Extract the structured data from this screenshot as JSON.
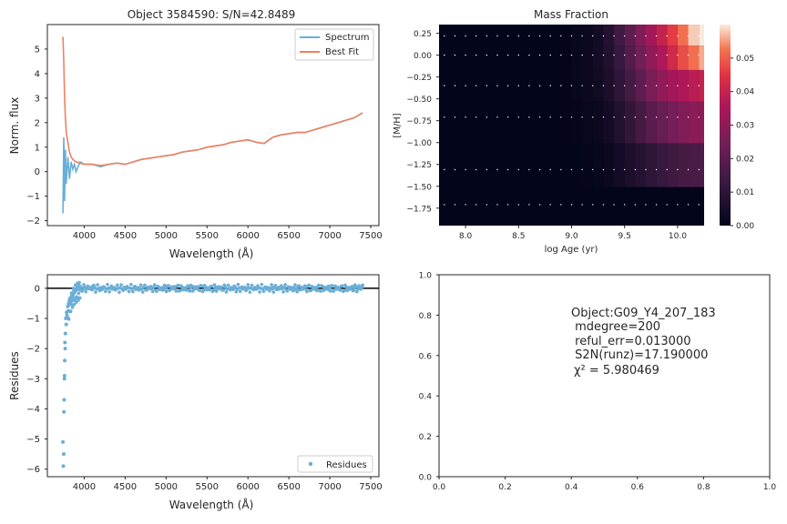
{
  "chart_data": [
    {
      "type": "line",
      "title": "Object 3584590: S/N=42.8489",
      "xlabel": "Wavelength (Å)",
      "ylabel": "Norm. flux",
      "xlim": [
        3550,
        7600
      ],
      "ylim": [
        -2.2,
        6.0
      ],
      "xticks": [
        "4000",
        "4500",
        "5000",
        "5500",
        "6000",
        "6500",
        "7000",
        "7500"
      ],
      "yticks": [
        "−2",
        "−1",
        "0",
        "1",
        "2",
        "3",
        "4",
        "5"
      ],
      "legend": "top-right",
      "series": [
        {
          "name": "Spectrum",
          "color": "#6aaed6",
          "x": [
            3740,
            3750,
            3760,
            3770,
            3780,
            3800,
            3820,
            3840,
            3860,
            3880,
            3900,
            3950,
            4000,
            4100,
            4200,
            4300,
            4400,
            4500,
            4600,
            4700,
            4800,
            4900,
            5000,
            5100,
            5200,
            5300,
            5400,
            5500,
            5600,
            5700,
            5800,
            5900,
            6000,
            6100,
            6200,
            6300,
            6400,
            6500,
            6600,
            6700,
            6800,
            6900,
            7000,
            7100,
            7200,
            7300,
            7400
          ],
          "y": [
            -1.7,
            1.4,
            -1.2,
            0.9,
            -0.5,
            0.6,
            -0.3,
            0.4,
            0.1,
            0.3,
            0.0,
            0.4,
            0.3,
            0.3,
            0.2,
            0.3,
            0.35,
            0.3,
            0.4,
            0.5,
            0.55,
            0.6,
            0.65,
            0.7,
            0.8,
            0.85,
            0.9,
            1.0,
            1.05,
            1.1,
            1.2,
            1.25,
            1.3,
            1.2,
            1.15,
            1.4,
            1.5,
            1.55,
            1.6,
            1.6,
            1.7,
            1.8,
            1.9,
            2.0,
            2.1,
            2.2,
            2.4
          ]
        },
        {
          "name": "Best Fit",
          "color": "#f08060",
          "x": [
            3740,
            3750,
            3760,
            3770,
            3780,
            3800,
            3820,
            3840,
            3860,
            3880,
            3900,
            3950,
            4000,
            4100,
            4200,
            4300,
            4400,
            4500,
            4600,
            4700,
            4800,
            4900,
            5000,
            5100,
            5200,
            5300,
            5400,
            5500,
            5600,
            5700,
            5800,
            5900,
            6000,
            6100,
            6200,
            6300,
            6400,
            6500,
            6600,
            6700,
            6800,
            6900,
            7000,
            7100,
            7200,
            7300,
            7400
          ],
          "y": [
            5.5,
            4.5,
            3.0,
            2.2,
            1.6,
            1.2,
            0.8,
            0.6,
            0.5,
            0.45,
            0.4,
            0.35,
            0.3,
            0.3,
            0.25,
            0.3,
            0.35,
            0.3,
            0.4,
            0.5,
            0.55,
            0.6,
            0.65,
            0.7,
            0.8,
            0.85,
            0.9,
            1.0,
            1.05,
            1.1,
            1.2,
            1.25,
            1.3,
            1.2,
            1.15,
            1.4,
            1.5,
            1.55,
            1.6,
            1.6,
            1.7,
            1.8,
            1.9,
            2.0,
            2.1,
            2.2,
            2.4
          ]
        }
      ]
    },
    {
      "type": "heatmap",
      "title": "Mass Fraction",
      "xlabel": "log Age (yr)",
      "ylabel": "[M/H]",
      "xlim": [
        7.75,
        10.25
      ],
      "ylim": [
        -1.95,
        0.35
      ],
      "xticks": [
        "8.0",
        "8.5",
        "9.0",
        "9.5",
        "10.0"
      ],
      "yticks": [
        "0.25",
        "0.00",
        "−0.25",
        "−0.50",
        "−0.75",
        "−1.00",
        "−1.25",
        "−1.50",
        "−1.75"
      ],
      "colorbar": {
        "vmin": 0,
        "vmax": 0.06,
        "ticks": [
          "0.00",
          "0.01",
          "0.02",
          "0.03",
          "0.04",
          "0.05"
        ]
      },
      "age_columns": [
        9.05,
        9.15,
        9.25,
        9.35,
        9.45,
        9.55,
        9.65,
        9.75,
        9.85,
        9.95,
        10.05,
        10.15,
        10.25
      ],
      "metallicity_rows": [
        0.22,
        0.0,
        -0.35,
        -0.71,
        -1.31,
        -1.71
      ],
      "values": [
        [
          0.001,
          0.002,
          0.004,
          0.008,
          0.014,
          0.02,
          0.027,
          0.034,
          0.04,
          0.046,
          0.052,
          0.058,
          0.06
        ],
        [
          0.001,
          0.002,
          0.004,
          0.007,
          0.012,
          0.018,
          0.024,
          0.03,
          0.036,
          0.042,
          0.048,
          0.052,
          0.056
        ],
        [
          0.001,
          0.002,
          0.003,
          0.006,
          0.01,
          0.015,
          0.02,
          0.026,
          0.03,
          0.034,
          0.036,
          0.038,
          0.04
        ],
        [
          0.0005,
          0.001,
          0.002,
          0.004,
          0.007,
          0.011,
          0.015,
          0.019,
          0.022,
          0.025,
          0.027,
          0.029,
          0.03
        ],
        [
          0.0,
          0.0005,
          0.001,
          0.002,
          0.004,
          0.006,
          0.008,
          0.01,
          0.012,
          0.014,
          0.015,
          0.016,
          0.017
        ],
        [
          0.0,
          0.0,
          0.0,
          0.0,
          0.0,
          0.0,
          0.0,
          0.0,
          0.0,
          0.0,
          0.0,
          0.0,
          0.0
        ]
      ]
    },
    {
      "type": "scatter",
      "xlabel": "Wavelength (Å)",
      "ylabel": "Residues",
      "xlim": [
        3550,
        7600
      ],
      "ylim": [
        -6.25,
        0.45
      ],
      "xticks": [
        "4000",
        "4500",
        "5000",
        "5500",
        "6000",
        "6500",
        "7000",
        "7500"
      ],
      "yticks": [
        "−6",
        "−5",
        "−4",
        "−3",
        "−2",
        "−1",
        "0"
      ],
      "legend": "bottom-right",
      "series": [
        {
          "name": "Residues",
          "color": "#6aaed6",
          "x": [
            3740,
            3745,
            3750,
            3752,
            3755,
            3758,
            3760,
            3762,
            3765,
            3768,
            3770,
            3775,
            3780,
            3785,
            3790,
            3800,
            3810,
            3820,
            3830,
            3840,
            3850,
            3860,
            3880,
            3900,
            3920,
            3950,
            4000,
            4100,
            4200,
            4300,
            4500,
            4700,
            5000,
            5300,
            5600,
            6000,
            6300,
            6600,
            7000,
            7300,
            7400
          ],
          "y": [
            -5.1,
            -5.9,
            -5.5,
            -4.1,
            -3.7,
            -3.0,
            -2.9,
            -2.4,
            -1.8,
            -2.0,
            -1.5,
            -1.0,
            -1.2,
            -0.8,
            -0.9,
            -0.6,
            -0.5,
            -0.4,
            -0.45,
            -0.3,
            -0.25,
            -0.2,
            -0.15,
            -0.05,
            0.05,
            -0.05,
            0.0,
            0.05,
            -0.05,
            0.0,
            0.02,
            -0.02,
            0.0,
            0.03,
            -0.02,
            0.0,
            0.02,
            -0.01,
            0.0,
            0.03,
            0.1
          ]
        }
      ]
    },
    {
      "type": "scatter",
      "xlim": [
        0.0,
        1.0
      ],
      "ylim": [
        0.0,
        1.0
      ],
      "xticks": [
        "0.0",
        "0.2",
        "0.4",
        "0.6",
        "0.8",
        "1.0"
      ],
      "yticks": [
        "0.0",
        "0.2",
        "0.4",
        "0.6",
        "0.8",
        "1.0"
      ],
      "annotation_lines": [
        "Object:G09_Y4_207_183",
        " mdegree=200",
        " reful_err=0.013000",
        " S2N(runz)=17.190000"
      ],
      "chi2_text": "χ² = 5.980469"
    }
  ]
}
